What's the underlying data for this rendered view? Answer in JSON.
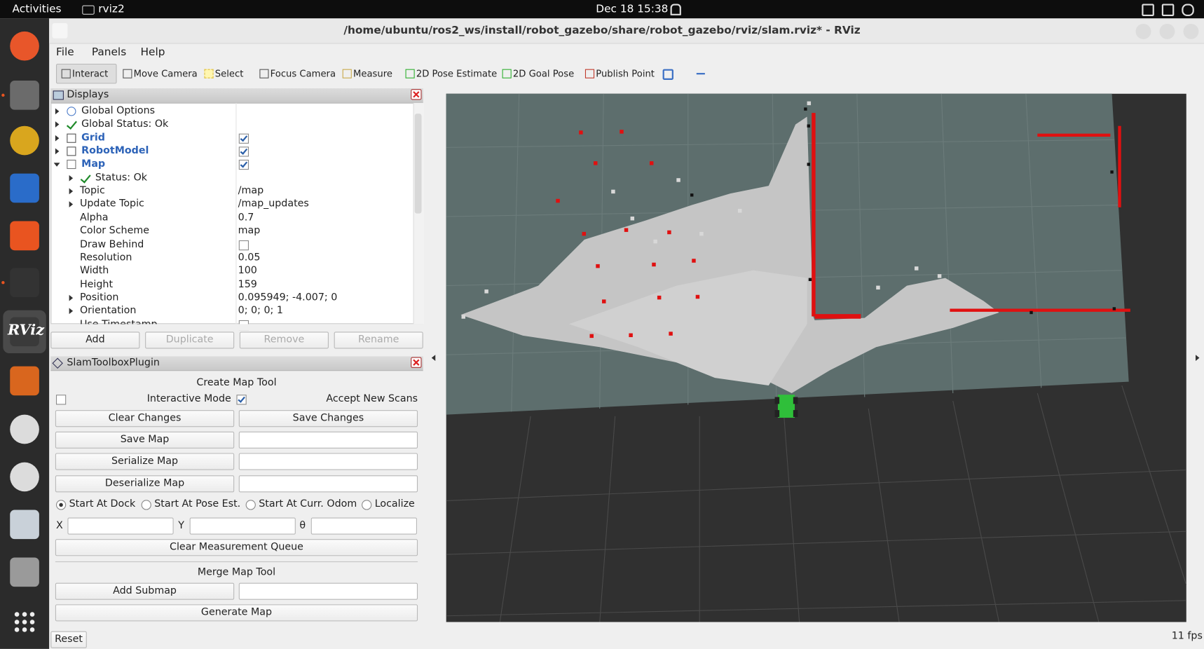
{
  "topbar": {
    "activities": "Activities",
    "app": "rviz2",
    "clock": "Dec 18  15:38"
  },
  "dock": {
    "rviz_label": "RViz"
  },
  "window": {
    "title": "/home/ubuntu/ros2_ws/install/robot_gazebo/share/robot_gazebo/rviz/slam.rviz* - RViz"
  },
  "menu": [
    "File",
    "Panels",
    "Help"
  ],
  "toolbar": [
    "Interact",
    "Move Camera",
    "Select",
    "Focus Camera",
    "Measure",
    "2D Pose Estimate",
    "2D Goal Pose",
    "Publish Point"
  ],
  "displays": {
    "title": "Displays",
    "rows": [
      {
        "name": "Global Options",
        "icon": "gear",
        "expandable": true
      },
      {
        "name": "Global Status: Ok",
        "icon": "check",
        "expandable": true
      },
      {
        "name": "Grid",
        "icon": "grid",
        "expandable": true,
        "checked": true
      },
      {
        "name": "RobotModel",
        "icon": "robot",
        "expandable": true,
        "checked": true
      },
      {
        "name": "Map",
        "icon": "map",
        "expandable": true,
        "expanded": true,
        "checked": true,
        "children": [
          {
            "name": "Status: Ok",
            "icon": "check",
            "expandable": true
          },
          {
            "name": "Topic",
            "value": "/map",
            "expandable": true
          },
          {
            "name": "Update Topic",
            "value": "/map_updates",
            "expandable": true
          },
          {
            "name": "Alpha",
            "value": "0.7"
          },
          {
            "name": "Color Scheme",
            "value": "map"
          },
          {
            "name": "Draw Behind",
            "checked": false
          },
          {
            "name": "Resolution",
            "value": "0.05"
          },
          {
            "name": "Width",
            "value": "100"
          },
          {
            "name": "Height",
            "value": "159"
          },
          {
            "name": "Position",
            "value": "0.095949; -4.007; 0",
            "expandable": true
          },
          {
            "name": "Orientation",
            "value": "0; 0; 0; 1",
            "expandable": true
          },
          {
            "name": "Use Timestamp",
            "checked": false
          }
        ]
      }
    ],
    "buttons": [
      {
        "label": "Add",
        "enabled": true
      },
      {
        "label": "Duplicate",
        "enabled": false
      },
      {
        "label": "Remove",
        "enabled": false
      },
      {
        "label": "Rename",
        "enabled": false
      }
    ]
  },
  "slam": {
    "title": "SlamToolboxPlugin",
    "create_heading": "Create Map Tool",
    "checks": [
      {
        "label": "Interactive Mode",
        "checked": false
      },
      {
        "label": "Accept New Scans",
        "checked": true
      }
    ],
    "action_rows": [
      {
        "buttons": [
          "Clear Changes",
          "Save Changes"
        ]
      },
      {
        "buttons": [
          "Save Map"
        ],
        "has_field": true
      },
      {
        "buttons": [
          "Serialize Map"
        ],
        "has_field": true
      },
      {
        "buttons": [
          "Deserialize Map"
        ],
        "has_field": true
      }
    ],
    "radios": {
      "options": [
        "Start At Dock",
        "Start At Pose Est.",
        "Start At Curr. Odom",
        "Localize"
      ],
      "selected": 0
    },
    "coords": [
      "X",
      "Y",
      "θ"
    ],
    "clear_queue": "Clear Measurement Queue",
    "merge_heading": "Merge Map Tool",
    "merge_rows": [
      {
        "buttons": [
          "Add Submap"
        ],
        "has_field": true
      },
      {
        "buttons": [
          "Generate Map"
        ]
      }
    ]
  },
  "status": {
    "reset": "Reset",
    "fps": "11 fps"
  }
}
